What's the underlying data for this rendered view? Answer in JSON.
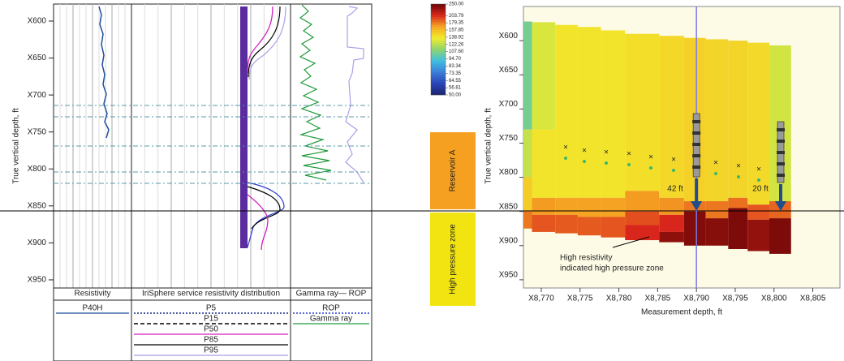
{
  "log_panel": {
    "y_label": "True vertical depth, ft",
    "ylim": [
      577,
      961
    ],
    "yticks": [
      {
        "value": 600,
        "label": "X600"
      },
      {
        "value": 650,
        "label": "X650"
      },
      {
        "value": 700,
        "label": "X700"
      },
      {
        "value": 750,
        "label": "X750"
      },
      {
        "value": 800,
        "label": "X800"
      },
      {
        "value": 850,
        "label": "X850"
      },
      {
        "value": 900,
        "label": "X900"
      },
      {
        "value": 950,
        "label": "X950"
      }
    ],
    "tracks": [
      {
        "title": "Resistivity",
        "legend": [
          {
            "name": "P40H",
            "color": "#1f4e9a",
            "dash": "solid"
          }
        ]
      },
      {
        "title": "IriSphere service resistivity distribution",
        "legend": [
          {
            "name": "P5",
            "color": "#1a2a8a",
            "dash": "dotted"
          },
          {
            "name": "P15",
            "color": "#000000",
            "dash": "dashed"
          },
          {
            "name": "P50",
            "color": "#d020c0",
            "dash": "solid"
          },
          {
            "name": "P85",
            "color": "#000000",
            "dash": "solid"
          },
          {
            "name": "P95",
            "color": "#a8a0e8",
            "dash": "solid"
          }
        ]
      },
      {
        "title": "Gamma ray— ROP",
        "legend": [
          {
            "name": "ROP",
            "color": "#2a3ad0",
            "dash": "dotted"
          },
          {
            "name": "Gamma ray",
            "color": "#1f9a3a",
            "dash": "solid"
          }
        ]
      }
    ]
  },
  "colorbar": {
    "scale": "log",
    "lim": [
      50,
      250
    ],
    "colors": [
      "#1b2470",
      "#2a44b8",
      "#3a7fd8",
      "#40bfe0",
      "#8dd46e",
      "#f2ec2c",
      "#f6a623",
      "#d9261c",
      "#6b0606"
    ],
    "ticks": [
      {
        "value": 250,
        "label": "250.00"
      },
      {
        "value": 203.79,
        "label": "203.79"
      },
      {
        "value": 179.35,
        "label": "179.35"
      },
      {
        "value": 157.85,
        "label": "157.85"
      },
      {
        "value": 138.92,
        "label": "138.92"
      },
      {
        "value": 122.26,
        "label": "122.26"
      },
      {
        "value": 107.6,
        "label": "107.60"
      },
      {
        "value": 94.7,
        "label": "94.70"
      },
      {
        "value": 83.34,
        "label": "83.34"
      },
      {
        "value": 73.35,
        "label": "73.35"
      },
      {
        "value": 64.55,
        "label": "64.55"
      },
      {
        "value": 56.81,
        "label": "56.81"
      },
      {
        "value": 50,
        "label": "50.00"
      }
    ]
  },
  "zones": [
    {
      "label": "Reservoir A",
      "color": "#f5a020"
    },
    {
      "label": "High pressure zone",
      "color": "#f2e410"
    }
  ],
  "section": {
    "type": "heatmap",
    "y_label": "True vertical depth, ft",
    "x_label": "Measurement depth, ft",
    "xlim": [
      8767.7,
      8808.5
    ],
    "ylim": [
      550,
      962
    ],
    "xticks": [
      {
        "value": 8770,
        "label": "X8,770"
      },
      {
        "value": 8775,
        "label": "X8,775"
      },
      {
        "value": 8780,
        "label": "X8,780"
      },
      {
        "value": 8785,
        "label": "X8,785"
      },
      {
        "value": 8790,
        "label": "X8,790"
      },
      {
        "value": 8795,
        "label": "X8,795"
      },
      {
        "value": 8800,
        "label": "X8,800"
      },
      {
        "value": 8805,
        "label": "X8,805"
      }
    ],
    "yticks": [
      {
        "value": 600,
        "label": "X600"
      },
      {
        "value": 650,
        "label": "X650"
      },
      {
        "value": 700,
        "label": "X700"
      },
      {
        "value": 750,
        "label": "X750"
      },
      {
        "value": 800,
        "label": "X800"
      },
      {
        "value": 850,
        "label": "X850"
      },
      {
        "value": 900,
        "label": "X900"
      },
      {
        "value": 950,
        "label": "X950"
      }
    ],
    "well_line": 8790,
    "well_color": "#7a7ae8",
    "columns": [
      {
        "x": [
          8767.7,
          8768.8
        ],
        "bands": [
          {
            "top": 572,
            "bottom": 730,
            "value": 105
          },
          {
            "top": 730,
            "bottom": 800,
            "value": 125
          },
          {
            "top": 800,
            "bottom": 850,
            "value": 150
          },
          {
            "top": 850,
            "bottom": 875,
            "value": 180
          }
        ]
      },
      {
        "x": [
          8768.8,
          8771.8
        ],
        "bands": [
          {
            "top": 573,
            "bottom": 730,
            "value": 130
          },
          {
            "top": 730,
            "bottom": 830,
            "value": 140
          },
          {
            "top": 830,
            "bottom": 855,
            "value": 170
          },
          {
            "top": 855,
            "bottom": 880,
            "value": 190
          }
        ]
      },
      {
        "x": [
          8771.8,
          8774.7
        ],
        "bands": [
          {
            "top": 577,
            "bottom": 830,
            "value": 140
          },
          {
            "top": 830,
            "bottom": 855,
            "value": 168
          },
          {
            "top": 855,
            "bottom": 882,
            "value": 188
          }
        ]
      },
      {
        "x": [
          8774.7,
          8777.7
        ],
        "bands": [
          {
            "top": 580,
            "bottom": 830,
            "value": 140
          },
          {
            "top": 830,
            "bottom": 858,
            "value": 168
          },
          {
            "top": 858,
            "bottom": 885,
            "value": 188
          }
        ]
      },
      {
        "x": [
          8777.7,
          8780.8
        ],
        "bands": [
          {
            "top": 585,
            "bottom": 830,
            "value": 140
          },
          {
            "top": 830,
            "bottom": 858,
            "value": 168
          },
          {
            "top": 858,
            "bottom": 888,
            "value": 190
          }
        ]
      },
      {
        "x": [
          8780.8,
          8785.2
        ],
        "bands": [
          {
            "top": 590,
            "bottom": 820,
            "value": 142
          },
          {
            "top": 820,
            "bottom": 850,
            "value": 170
          },
          {
            "top": 850,
            "bottom": 870,
            "value": 192
          },
          {
            "top": 870,
            "bottom": 892,
            "value": 205
          }
        ]
      },
      {
        "x": [
          8785.2,
          8788.4
        ],
        "bands": [
          {
            "top": 593,
            "bottom": 830,
            "value": 145
          },
          {
            "top": 830,
            "bottom": 855,
            "value": 172
          },
          {
            "top": 855,
            "bottom": 880,
            "value": 205
          },
          {
            "top": 880,
            "bottom": 895,
            "value": 235
          }
        ]
      },
      {
        "x": [
          8788.4,
          8791.2
        ],
        "bands": [
          {
            "top": 596,
            "bottom": 835,
            "value": 148
          },
          {
            "top": 835,
            "bottom": 850,
            "value": 180
          },
          {
            "top": 850,
            "bottom": 900,
            "value": 240
          }
        ]
      },
      {
        "x": [
          8791.2,
          8794.1
        ],
        "bands": [
          {
            "top": 598,
            "bottom": 835,
            "value": 146
          },
          {
            "top": 835,
            "bottom": 860,
            "value": 180
          },
          {
            "top": 860,
            "bottom": 900,
            "value": 238
          }
        ]
      },
      {
        "x": [
          8794.1,
          8796.6
        ],
        "bands": [
          {
            "top": 600,
            "bottom": 830,
            "value": 146
          },
          {
            "top": 830,
            "bottom": 845,
            "value": 182
          },
          {
            "top": 845,
            "bottom": 905,
            "value": 242
          }
        ]
      },
      {
        "x": [
          8796.6,
          8799.4
        ],
        "bands": [
          {
            "top": 603,
            "bottom": 840,
            "value": 144
          },
          {
            "top": 840,
            "bottom": 862,
            "value": 190
          },
          {
            "top": 862,
            "bottom": 908,
            "value": 232
          }
        ]
      },
      {
        "x": [
          8799.4,
          8802.2
        ],
        "bands": [
          {
            "top": 607,
            "bottom": 835,
            "value": 128
          },
          {
            "top": 835,
            "bottom": 860,
            "value": 185
          },
          {
            "top": 860,
            "bottom": 912,
            "value": 242
          }
        ]
      }
    ],
    "annotations": [
      "42 ft",
      "20 ft",
      "High resistivity",
      "indicated high pressure zone"
    ]
  }
}
